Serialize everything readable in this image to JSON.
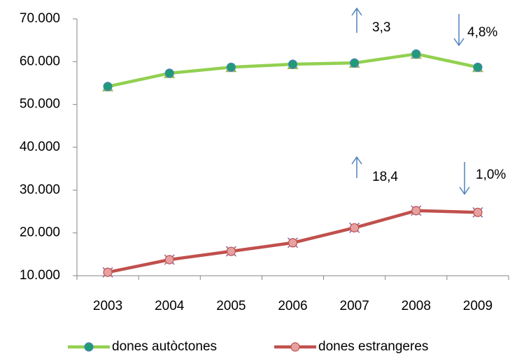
{
  "chart_data": {
    "type": "line",
    "categories": [
      "2003",
      "2004",
      "2005",
      "2006",
      "2007",
      "2008",
      "2009"
    ],
    "series": [
      {
        "name": "dones autòctones",
        "color": "#92d050",
        "marker_color": "#1f9b77",
        "values": [
          54200,
          57300,
          58700,
          59400,
          59700,
          61800,
          58700
        ]
      },
      {
        "name": "dones estrangeres",
        "color": "#c0504d",
        "marker_color": "#e6a0a0",
        "values": [
          10800,
          13750,
          15700,
          17700,
          21200,
          25200,
          24800
        ]
      }
    ],
    "ylim": [
      10000,
      70000
    ],
    "yticks": [
      {
        "value": 10000,
        "label": "10.000"
      },
      {
        "value": 20000,
        "label": "20.000"
      },
      {
        "value": 30000,
        "label": "30.000"
      },
      {
        "value": 40000,
        "label": "40.000"
      },
      {
        "value": 50000,
        "label": "50.000"
      },
      {
        "value": 60000,
        "label": "60.000"
      },
      {
        "value": 70000,
        "label": "70.000"
      }
    ],
    "grid": false,
    "legend": "bottom",
    "annotations": [
      "3,3",
      "4,8%",
      "18,4",
      "1,0%"
    ]
  }
}
